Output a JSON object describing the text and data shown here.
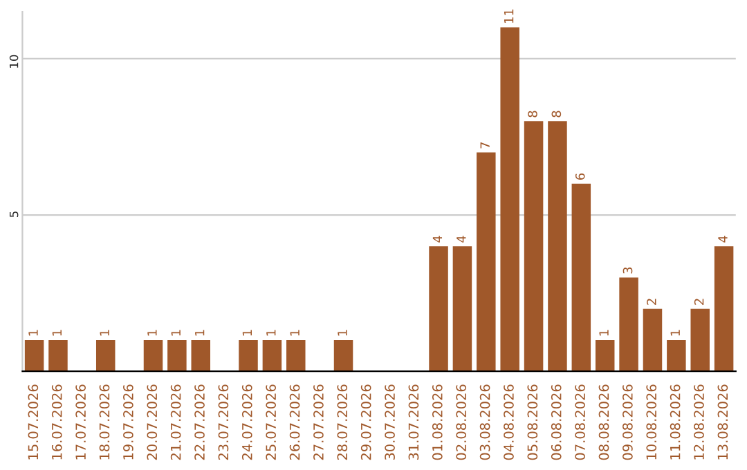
{
  "chart_data": {
    "type": "bar",
    "categories": [
      "15.07.2026",
      "16.07.2026",
      "17.07.2026",
      "18.07.2026",
      "19.07.2026",
      "20.07.2026",
      "21.07.2026",
      "22.07.2026",
      "23.07.2026",
      "24.07.2026",
      "25.07.2026",
      "26.07.2026",
      "27.07.2026",
      "28.07.2026",
      "29.07.2026",
      "30.07.2026",
      "31.07.2026",
      "01.08.2026",
      "02.08.2026",
      "03.08.2026",
      "04.08.2026",
      "05.08.2026",
      "06.08.2026",
      "07.08.2026",
      "08.08.2026",
      "09.08.2026",
      "10.08.2026",
      "11.08.2026",
      "12.08.2026",
      "13.08.2026"
    ],
    "values": [
      1,
      1,
      0,
      1,
      0,
      1,
      1,
      1,
      0,
      1,
      1,
      1,
      0,
      1,
      0,
      0,
      0,
      4,
      4,
      7,
      11,
      8,
      8,
      6,
      1,
      3,
      2,
      1,
      2,
      4
    ],
    "value_labels": [
      "1",
      "1",
      null,
      "1",
      null,
      "1",
      "1",
      "1",
      null,
      "1",
      "1",
      "1",
      null,
      "1",
      null,
      null,
      null,
      "4",
      "4",
      "7",
      "11",
      "8",
      "8",
      "6",
      "1",
      "3",
      "2",
      "1",
      "2",
      "4"
    ],
    "color": "#a0582a",
    "ylim": [
      0,
      11.5
    ],
    "yticks": [
      5,
      10
    ],
    "grid": "y"
  }
}
